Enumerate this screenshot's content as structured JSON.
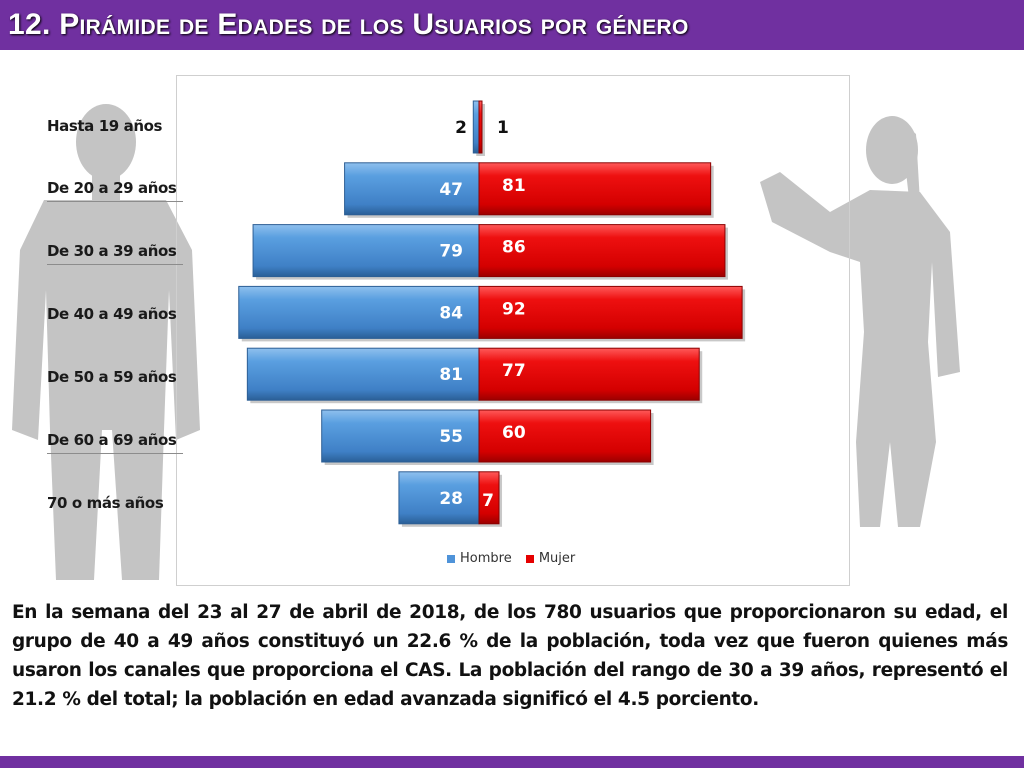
{
  "header": {
    "title": "12. Pirámide de Edades de los Usuarios por género",
    "bar_color": "#7030a0"
  },
  "chart_data": {
    "type": "bar",
    "orientation": "horizontal-pyramid",
    "categories": [
      "Hasta 19 años",
      "De 20 a 29 años",
      "De 30 a 39 años",
      "De 40 a 49 años",
      "De 50 a 59 años",
      "De 60 a 69 años",
      "70 o más años"
    ],
    "series": [
      {
        "name": "Hombre",
        "color": "#4f93d9",
        "values": [
          2,
          47,
          79,
          84,
          81,
          55,
          28
        ]
      },
      {
        "name": "Mujer",
        "color": "#e50000",
        "values": [
          1,
          81,
          86,
          92,
          77,
          60,
          7
        ]
      }
    ],
    "value_labels": {
      "Hombre": [
        "2",
        "47",
        "79",
        "84",
        "81",
        "55",
        "28"
      ],
      "Mujer": [
        "1",
        "81",
        "86",
        "92",
        "77",
        "60",
        "7"
      ]
    },
    "legend": {
      "position": "bottom",
      "entries": [
        "Hombre",
        "Mujer"
      ]
    },
    "grid": false
  },
  "caption": {
    "text": "En la semana del 23 al 27 de abril de 2018, de los 780 usuarios que proporcionaron su edad, el grupo de 40 a 49 años constituyó un 22.6 % de la población, toda vez que fueron quienes más usaron los canales que proporciona el CAS. La población del rango de 30 a 39 años, representó el 21.2 % del total; la población en edad avanzada significó el 4.5 porciento."
  },
  "decorations": {
    "silhouette_color": "#c4c4c4",
    "left_figure": "man-silhouette-icon",
    "right_figure": "woman-silhouette-icon"
  }
}
